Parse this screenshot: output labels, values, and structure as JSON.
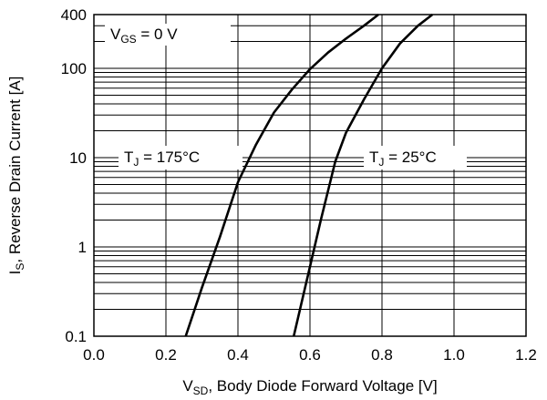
{
  "chart_data": {
    "type": "line",
    "xlabel": {
      "main": "V",
      "sub": "SD",
      "rest": ", Body Diode Forward Voltage [V]"
    },
    "ylabel": {
      "main": "I",
      "sub": "S",
      "rest": ", Reverse Drain Current [A]"
    },
    "xlim": [
      0.0,
      1.2
    ],
    "ylim": [
      0.1,
      400
    ],
    "yscale": "log",
    "grid": true,
    "x_ticks": [
      0.0,
      0.2,
      0.4,
      0.6,
      0.8,
      1.0,
      1.2
    ],
    "x_tick_labels": [
      "0.0",
      "0.2",
      "0.4",
      "0.6",
      "0.8",
      "1.0",
      "1.2"
    ],
    "y_ticks": [
      0.1,
      1,
      10,
      100,
      400
    ],
    "y_tick_labels": [
      "0.1",
      "1",
      "10",
      "100",
      "400"
    ],
    "annotations": [
      {
        "id": "vgs",
        "main": "V",
        "sub": "GS",
        "rest": " = 0 V"
      },
      {
        "id": "tj175",
        "main": "T",
        "sub": "J",
        "rest": " = 175°C"
      },
      {
        "id": "tj25",
        "main": "T",
        "sub": "J",
        "rest": " = 25°C"
      }
    ],
    "series": [
      {
        "label": {
          "main": "T",
          "sub": "J",
          "rest": " = 175°C"
        },
        "color": "#000000",
        "x": [
          0.255,
          0.3,
          0.35,
          0.4,
          0.45,
          0.5,
          0.55,
          0.6,
          0.65,
          0.7,
          0.75,
          0.79
        ],
        "y": [
          0.1,
          0.35,
          1.3,
          5.3,
          14,
          32,
          58,
          98,
          150,
          215,
          300,
          400
        ]
      },
      {
        "label": {
          "main": "T",
          "sub": "J",
          "rest": " = 25°C"
        },
        "color": "#000000",
        "x": [
          0.555,
          0.6,
          0.63,
          0.67,
          0.7,
          0.75,
          0.8,
          0.85,
          0.9,
          0.94
        ],
        "y": [
          0.1,
          0.6,
          2.0,
          9,
          19,
          45,
          100,
          190,
          300,
          400
        ]
      }
    ]
  }
}
